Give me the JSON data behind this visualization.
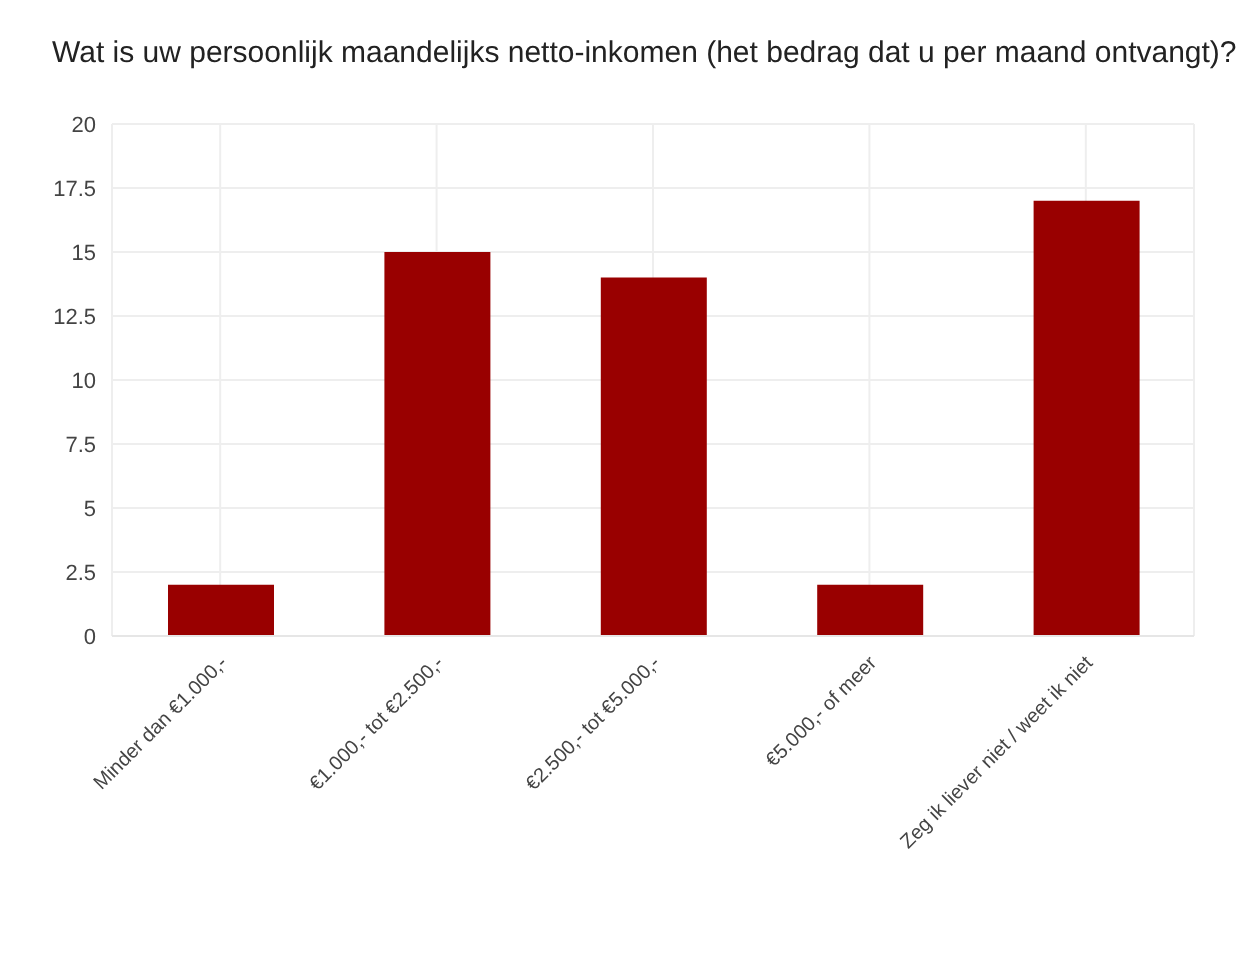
{
  "chart_data": {
    "type": "bar",
    "title": "Wat is uw persoonlijk maandelijks netto-inkomen (het bedrag dat u per maand ontvangt)?",
    "categories": [
      "Minder dan €1.000,-",
      "€1.000,- tot €2.500,-",
      "€2.500,- tot €5.000,-",
      "€5.000,- of meer",
      "Zeg ik liever niet / weet ik niet"
    ],
    "values": [
      2,
      15,
      14,
      2,
      17
    ],
    "color": "#990000",
    "ylim": [
      0,
      20
    ],
    "yticks": [
      0,
      2.5,
      5,
      7.5,
      10,
      12.5,
      15,
      17.5,
      20
    ],
    "grid": true,
    "legend": false
  }
}
